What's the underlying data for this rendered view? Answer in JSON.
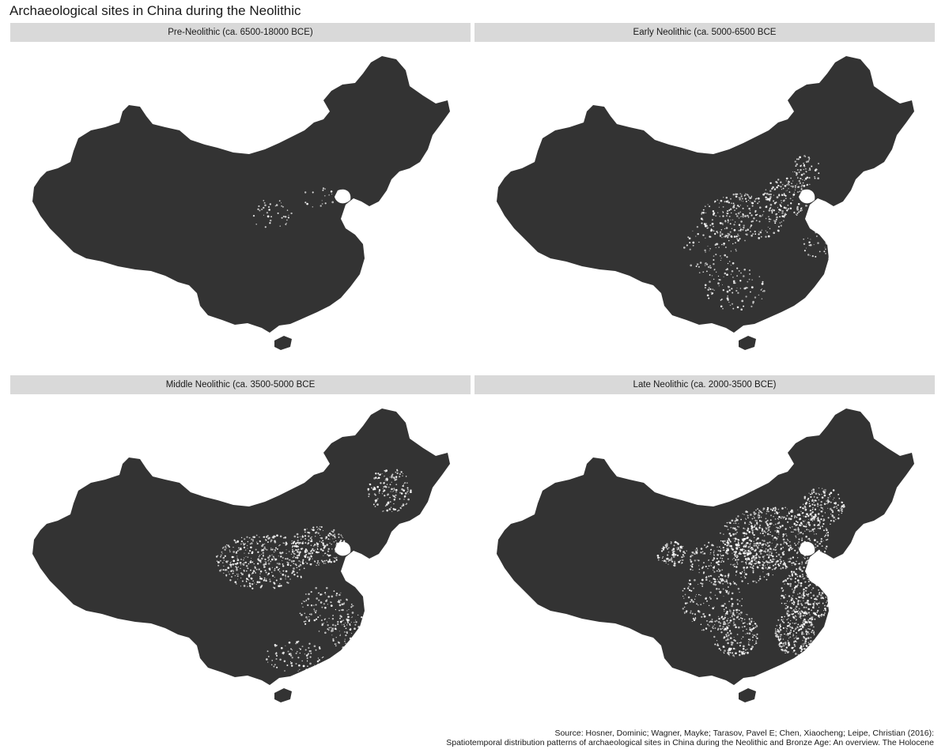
{
  "title": "Archaeological sites in China during the Neolithic",
  "colors": {
    "land": "#333333",
    "sites": "#ffffff",
    "strip": "#d9d9d9",
    "background": "#ffffff"
  },
  "panels": [
    {
      "label": "Pre-Neolithic (ca. 6500-18000 BCE)",
      "density": "very-low"
    },
    {
      "label": "Early Neolithic (ca. 5000-6500 BCE",
      "density": "low"
    },
    {
      "label": "Middle Neolithic (ca. 3500-5000 BCE",
      "density": "medium"
    },
    {
      "label": "Late Neolithic (ca. 2000-3500 BCE)",
      "density": "high"
    }
  ],
  "source": {
    "line1": "Source: Hosner, Dominic; Wagner, Mayke; Tarasov, Pavel E; Chen, Xiaocheng; Leipe, Christian (2016):",
    "line2": "Spatiotemporal distribution patterns of archaeological sites in China during the Neolithic and Bronze Age: An overview. The Holocene"
  }
}
